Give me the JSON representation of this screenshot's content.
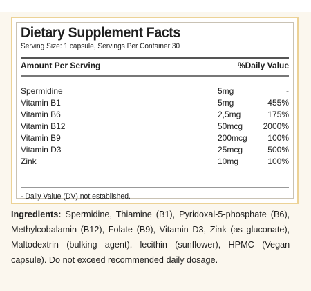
{
  "top_partial_text": "· · ·",
  "facts": {
    "title": "Dietary Supplement Facts",
    "serving": "Serving Size: 1 capsule, Servings Per Container:30",
    "header_amount": "Amount Per Serving",
    "header_dv": "%Daily Value",
    "rows": [
      {
        "name": "Spermidine",
        "amount": "5mg",
        "dv": "-"
      },
      {
        "name": "Vitamin B1",
        "amount": "5mg",
        "dv": "455%"
      },
      {
        "name": "Vitamin B6",
        "amount": "2,5mg",
        "dv": "175%"
      },
      {
        "name": "Vitamin B12",
        "amount": "50mcg",
        "dv": "2000%"
      },
      {
        "name": "Vitamin B9",
        "amount": "200mcg",
        "dv": "100%"
      },
      {
        "name": "Vitamin D3",
        "amount": "25mcg",
        "dv": "500%"
      },
      {
        "name": "Zink",
        "amount": "10mg",
        "dv": "100%"
      }
    ],
    "footnote": "- Daily Value (DV) not established."
  },
  "ingredients": {
    "label": "Ingredients:",
    "text": " Spermidine, Thiamine (B1), Pyridoxal-5-phosphate (B6), Methylcobalamin (B12), Folate (B9), Vitamin D3, Zink (as gluconate), Maltodextrin (bulking agent), lecithin (sunflower), HPMC (Vegan capsule). Do not exceed recommended daily dosage."
  },
  "colors": {
    "panel_border": "#ecd296",
    "background": "#fbf7ee"
  }
}
